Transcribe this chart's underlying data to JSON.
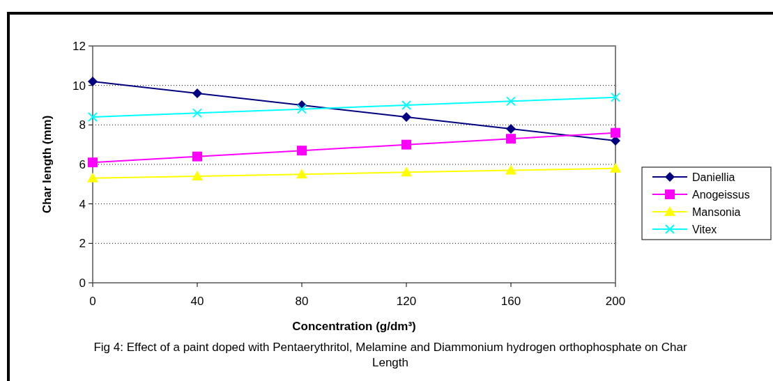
{
  "chart_data": {
    "type": "line",
    "xlabel": "Concentration (g/dm³)",
    "ylabel": "Char length (mm)",
    "x": [
      0,
      40,
      80,
      120,
      160,
      200
    ],
    "xlim": [
      0,
      200
    ],
    "xticks": [
      0,
      40,
      80,
      120,
      160,
      200
    ],
    "ylim": [
      0,
      12
    ],
    "yticks": [
      0,
      2,
      4,
      6,
      8,
      10,
      12
    ],
    "grid": "y",
    "legend": "right",
    "series": [
      {
        "name": "Daniellia",
        "color": "#000080",
        "marker": "diamond",
        "values": [
          10.2,
          9.6,
          9.0,
          8.4,
          7.8,
          7.2
        ]
      },
      {
        "name": "Anogeissus",
        "color": "#ff00ff",
        "marker": "square",
        "values": [
          6.1,
          6.4,
          6.7,
          7.0,
          7.3,
          7.6
        ]
      },
      {
        "name": "Mansonia",
        "color": "#ffff00",
        "marker": "triangle",
        "values": [
          5.3,
          5.4,
          5.5,
          5.6,
          5.7,
          5.8
        ]
      },
      {
        "name": "Vitex",
        "color": "#00ffff",
        "marker": "cross",
        "values": [
          8.4,
          8.6,
          8.8,
          9.0,
          9.2,
          9.4
        ]
      }
    ],
    "annotations": [
      "Fig 4:  Effect of a paint doped with Pentaerythritol, Melamine and Diammonium hydrogen orthophosphate on Char Length"
    ]
  }
}
